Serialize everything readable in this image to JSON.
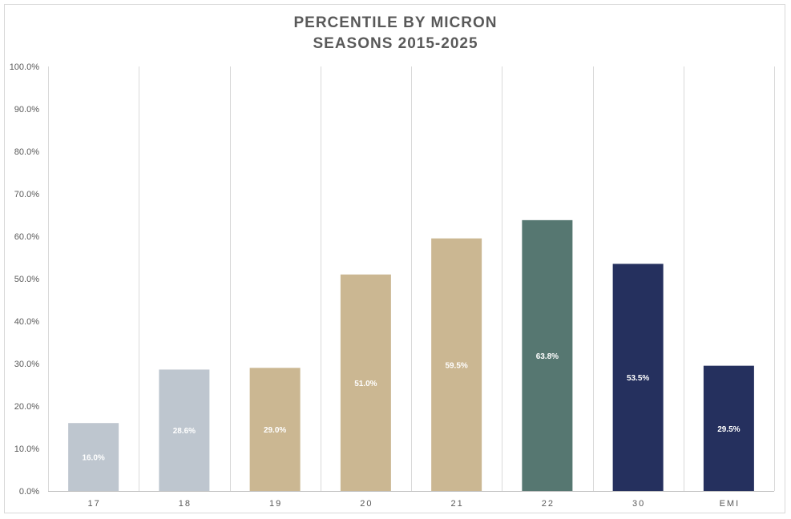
{
  "chart_data": {
    "type": "bar",
    "title": "PERCENTILE BY MICRON",
    "subtitle": "SEASONS 2015-2025",
    "categories": [
      "17",
      "18",
      "19",
      "20",
      "21",
      "22",
      "30",
      "EMI"
    ],
    "values": [
      16.0,
      28.6,
      29.0,
      51.0,
      59.5,
      63.8,
      53.5,
      29.5
    ],
    "data_labels": [
      "16.0%",
      "28.6%",
      "29.0%",
      "51.0%",
      "59.5%",
      "63.8%",
      "53.5%",
      "29.5%"
    ],
    "bar_colors": [
      "#bec6cf",
      "#bec6cf",
      "#cbb792",
      "#cbb792",
      "#cbb792",
      "#567771",
      "#25305e",
      "#25305e"
    ],
    "y_ticks": [
      0,
      10,
      20,
      30,
      40,
      50,
      60,
      70,
      80,
      90,
      100
    ],
    "y_tick_labels": [
      "0.0%",
      "10.0%",
      "20.0%",
      "30.0%",
      "40.0%",
      "50.0%",
      "60.0%",
      "70.0%",
      "80.0%",
      "90.0%",
      "100.0%"
    ],
    "ylim": [
      0,
      100
    ],
    "xlabel": "",
    "ylabel": "",
    "grid": "vertical category separators",
    "legend": "none"
  }
}
